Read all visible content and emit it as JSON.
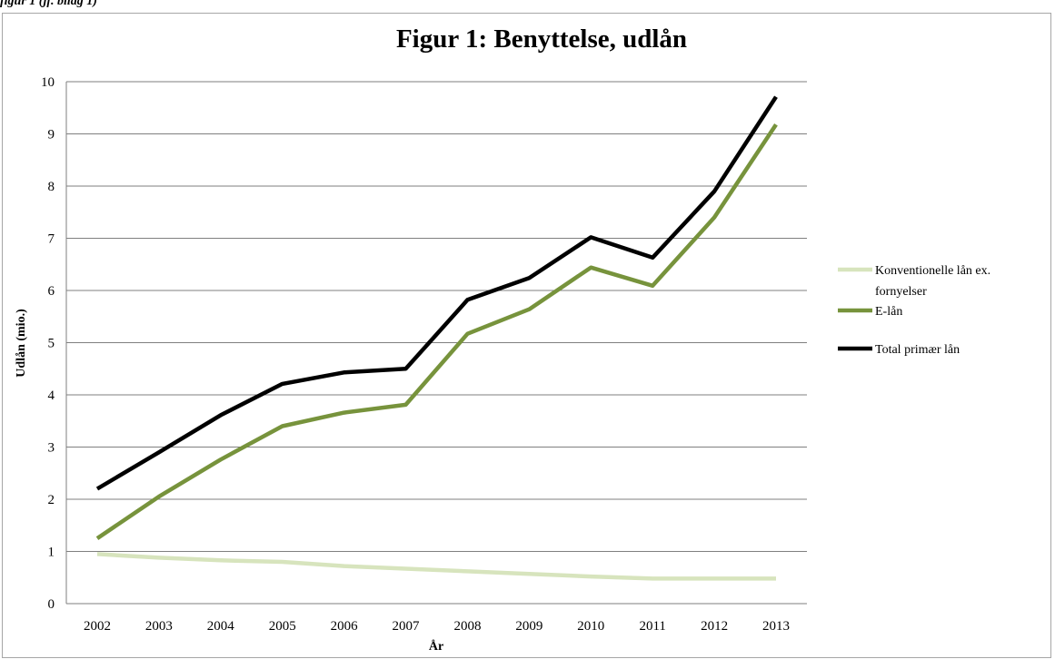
{
  "caption": "figur 1 (jf. bilag 1)",
  "chart_data": {
    "type": "line",
    "title": "Figur 1: Benyttelse, udlån",
    "xlabel": "År",
    "ylabel": "Udlån (mio.)",
    "ylim": [
      0,
      10
    ],
    "yticks": [
      "0",
      "1",
      "2",
      "3",
      "4",
      "5",
      "6",
      "7",
      "8",
      "9",
      "10"
    ],
    "grid": "horizontal",
    "legend_position": "right",
    "categories": [
      "2002",
      "2003",
      "2004",
      "2005",
      "2006",
      "2007",
      "2008",
      "2009",
      "2010",
      "2011",
      "2012",
      "2013"
    ],
    "series": [
      {
        "name": "Konventionelle lån ex. fornyelser",
        "name_lines": [
          "Konventionelle lån ex.",
          "fornyelser"
        ],
        "color": "#d7e4bd",
        "values": [
          0.95,
          0.88,
          0.83,
          0.8,
          0.72,
          0.67,
          0.62,
          0.57,
          0.52,
          0.48,
          0.48,
          0.48
        ]
      },
      {
        "name": "E-lån",
        "name_lines": [
          "E-lån"
        ],
        "color": "#77933c",
        "values": [
          1.25,
          2.05,
          2.76,
          3.4,
          3.66,
          3.81,
          5.17,
          5.64,
          6.44,
          6.09,
          7.4,
          9.18
        ]
      },
      {
        "name": "Total primær lån",
        "name_lines": [
          "Total primær lån"
        ],
        "color": "#000000",
        "values": [
          2.2,
          2.9,
          3.61,
          4.21,
          4.43,
          4.5,
          5.82,
          6.24,
          7.02,
          6.63,
          7.9,
          9.71
        ]
      }
    ]
  }
}
